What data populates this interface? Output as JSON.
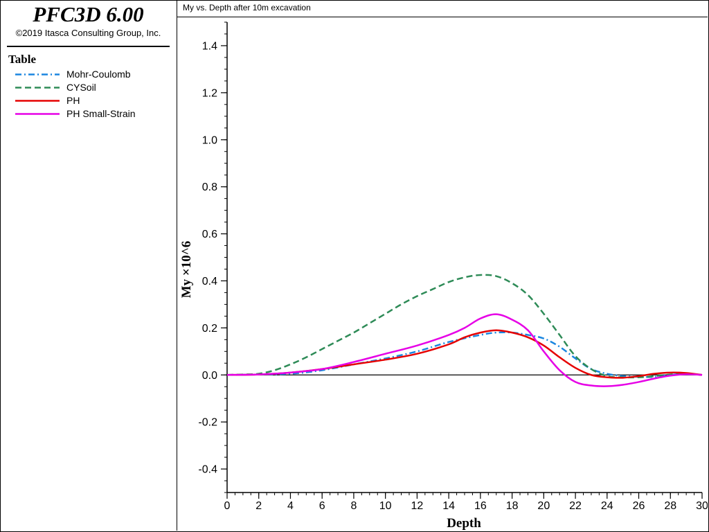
{
  "app": {
    "title": "PFC3D 6.00",
    "copyright": "©2019 Itasca Consulting Group, Inc."
  },
  "legend": {
    "title": "Table",
    "items": [
      {
        "label": "Mohr-Coulomb",
        "color": "#1a86e0",
        "dash": "dash-dot"
      },
      {
        "label": "CYSoil",
        "color": "#2e8b57",
        "dash": "dashed"
      },
      {
        "label": "PH",
        "color": "#e60000",
        "dash": "solid"
      },
      {
        "label": "PH Small-Strain",
        "color": "#e600e6",
        "dash": "solid"
      }
    ]
  },
  "chart_data": {
    "type": "line",
    "title": "My vs. Depth after 10m excavation",
    "xlabel": "Depth",
    "ylabel": "My ×10^6",
    "xlim": [
      0,
      30
    ],
    "ylim": [
      -0.5,
      1.5
    ],
    "xticks": [
      0,
      2,
      4,
      6,
      8,
      10,
      12,
      14,
      16,
      18,
      20,
      22,
      24,
      26,
      28,
      30
    ],
    "yticks": [
      -0.4,
      -0.2,
      0.0,
      0.2,
      0.4,
      0.6,
      0.8,
      1.0,
      1.2,
      1.4
    ],
    "zero_line": true,
    "grid": false,
    "legend_position": "left panel",
    "series": [
      {
        "name": "Mohr-Coulomb",
        "color": "#1a86e0",
        "style": "dash-dot",
        "points": [
          [
            0,
            0
          ],
          [
            2,
            0.002
          ],
          [
            4,
            0.005
          ],
          [
            6,
            0.02
          ],
          [
            8,
            0.045
          ],
          [
            10,
            0.07
          ],
          [
            12,
            0.1
          ],
          [
            14,
            0.14
          ],
          [
            16,
            0.17
          ],
          [
            17,
            0.18
          ],
          [
            18,
            0.18
          ],
          [
            19,
            0.17
          ],
          [
            20,
            0.155
          ],
          [
            21,
            0.12
          ],
          [
            22,
            0.07
          ],
          [
            23,
            0.025
          ],
          [
            24,
            0.005
          ],
          [
            25,
            -0.005
          ],
          [
            26,
            -0.008
          ],
          [
            27,
            -0.008
          ],
          [
            28,
            0
          ],
          [
            29,
            0.005
          ],
          [
            30,
            0
          ]
        ]
      },
      {
        "name": "CYSoil",
        "color": "#2e8b57",
        "style": "dashed",
        "points": [
          [
            0,
            0
          ],
          [
            1,
            0.002
          ],
          [
            2,
            0.005
          ],
          [
            3,
            0.02
          ],
          [
            4,
            0.045
          ],
          [
            5,
            0.075
          ],
          [
            6,
            0.11
          ],
          [
            7,
            0.145
          ],
          [
            8,
            0.18
          ],
          [
            9,
            0.22
          ],
          [
            10,
            0.26
          ],
          [
            11,
            0.3
          ],
          [
            12,
            0.335
          ],
          [
            13,
            0.365
          ],
          [
            14,
            0.395
          ],
          [
            15,
            0.415
          ],
          [
            16,
            0.425
          ],
          [
            17,
            0.42
          ],
          [
            18,
            0.39
          ],
          [
            19,
            0.34
          ],
          [
            20,
            0.26
          ],
          [
            21,
            0.17
          ],
          [
            22,
            0.08
          ],
          [
            23,
            0.025
          ],
          [
            24,
            -0.005
          ],
          [
            25,
            -0.01
          ],
          [
            26,
            -0.01
          ],
          [
            27,
            -0.005
          ],
          [
            28,
            0.002
          ],
          [
            29,
            0.005
          ],
          [
            30,
            0
          ]
        ]
      },
      {
        "name": "PH",
        "color": "#e60000",
        "style": "solid",
        "points": [
          [
            0,
            0
          ],
          [
            2,
            0.002
          ],
          [
            4,
            0.01
          ],
          [
            6,
            0.025
          ],
          [
            8,
            0.045
          ],
          [
            10,
            0.065
          ],
          [
            12,
            0.09
          ],
          [
            14,
            0.13
          ],
          [
            15,
            0.16
          ],
          [
            16,
            0.18
          ],
          [
            17,
            0.19
          ],
          [
            18,
            0.18
          ],
          [
            19,
            0.16
          ],
          [
            20,
            0.125
          ],
          [
            21,
            0.075
          ],
          [
            22,
            0.03
          ],
          [
            23,
            0
          ],
          [
            24,
            -0.01
          ],
          [
            25,
            -0.012
          ],
          [
            26,
            -0.005
          ],
          [
            27,
            0.005
          ],
          [
            28,
            0.01
          ],
          [
            29,
            0.008
          ],
          [
            30,
            0
          ]
        ]
      },
      {
        "name": "PH Small-Strain",
        "color": "#e600e6",
        "style": "solid",
        "points": [
          [
            0,
            0
          ],
          [
            2,
            0.002
          ],
          [
            4,
            0.01
          ],
          [
            6,
            0.025
          ],
          [
            8,
            0.055
          ],
          [
            10,
            0.09
          ],
          [
            12,
            0.125
          ],
          [
            14,
            0.17
          ],
          [
            15,
            0.2
          ],
          [
            16,
            0.24
          ],
          [
            17,
            0.258
          ],
          [
            18,
            0.235
          ],
          [
            19,
            0.19
          ],
          [
            20,
            0.1
          ],
          [
            21,
            0.02
          ],
          [
            22,
            -0.03
          ],
          [
            23,
            -0.045
          ],
          [
            24,
            -0.048
          ],
          [
            25,
            -0.042
          ],
          [
            26,
            -0.03
          ],
          [
            27,
            -0.015
          ],
          [
            28,
            -0.003
          ],
          [
            29,
            0.003
          ],
          [
            30,
            0
          ]
        ]
      }
    ]
  }
}
